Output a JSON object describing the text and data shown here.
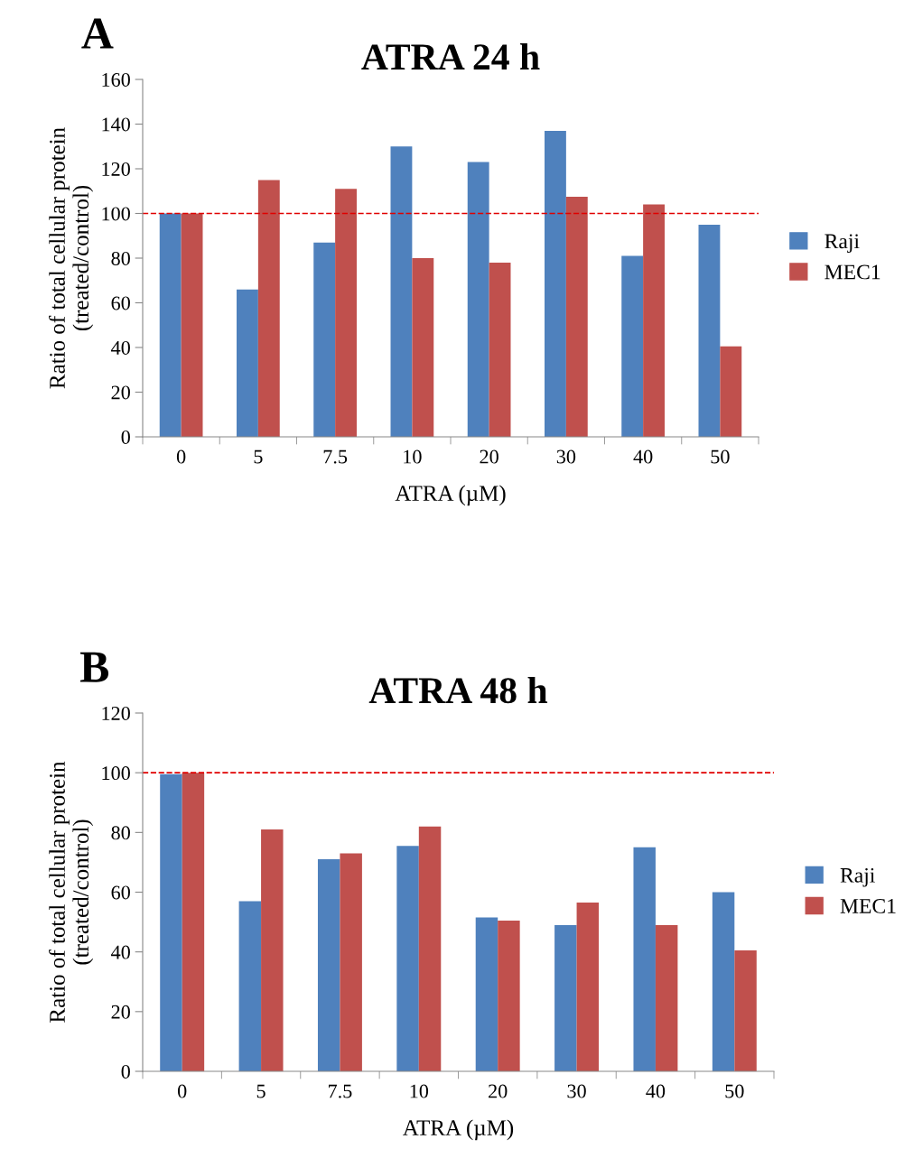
{
  "chart_data": [
    {
      "type": "bar",
      "title": "ATRA 24 h",
      "xlabel": "ATRA (µM)",
      "ylabel": "Ratio of total cellular protein\n(treated/control)",
      "annotations": [
        "A"
      ],
      "categories": [
        "0",
        "5",
        "7.5",
        "10",
        "20",
        "30",
        "40",
        "50"
      ],
      "series": [
        {
          "name": "Raji",
          "color": "#4f81bd",
          "values": [
            100,
            66,
            87,
            130,
            123,
            137,
            81,
            95
          ]
        },
        {
          "name": "MEC1",
          "color": "#c0504d",
          "values": [
            100,
            115,
            111,
            80,
            78,
            107.5,
            104,
            40.5
          ]
        }
      ],
      "ylim": [
        0,
        160
      ],
      "yticks": [
        0,
        20,
        40,
        60,
        80,
        100,
        120,
        140,
        160
      ],
      "grid": false,
      "legend": "right",
      "ref_lines": [
        {
          "axis": "y",
          "value": 100,
          "color": "#e00000",
          "line_style": "dashed"
        }
      ]
    },
    {
      "type": "bar",
      "title": "ATRA 48 h",
      "xlabel": "ATRA (µM)",
      "ylabel": "Ratio of total cellular protein\n(treated/control)",
      "annotations": [
        "B"
      ],
      "categories": [
        "0",
        "5",
        "7.5",
        "10",
        "20",
        "30",
        "40",
        "50"
      ],
      "series": [
        {
          "name": "Raji",
          "color": "#4f81bd",
          "values": [
            99.5,
            57,
            71,
            75.5,
            51.5,
            49,
            75,
            60
          ]
        },
        {
          "name": "MEC1",
          "color": "#c0504d",
          "values": [
            100,
            81,
            73,
            82,
            50.5,
            56.5,
            49,
            40.5
          ]
        }
      ],
      "ylim": [
        0,
        120
      ],
      "yticks": [
        0,
        20,
        40,
        60,
        80,
        100,
        120
      ],
      "grid": false,
      "legend": "right",
      "ref_lines": [
        {
          "axis": "y",
          "value": 100,
          "color": "#e00000",
          "line_style": "dashed"
        }
      ]
    }
  ]
}
